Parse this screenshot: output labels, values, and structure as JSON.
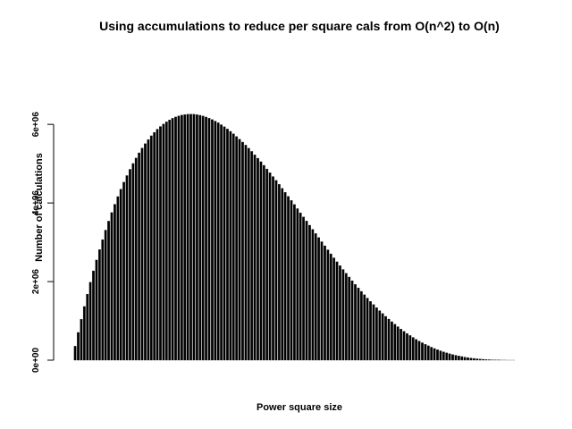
{
  "chart_data": {
    "type": "bar",
    "title": "Using accumulations to reduce per square cals from O(n^2) to O(n)",
    "xlabel": "Power square size",
    "ylabel": "Number of calculations",
    "ylim": [
      0,
      7800000
    ],
    "x_range": [
      1,
      300
    ],
    "y_ticks": [
      0,
      2000000,
      4000000,
      6000000
    ],
    "y_tick_labels": [
      "0e+00",
      "2e+06",
      "4e+06",
      "6e+06"
    ],
    "x_ticks_shown": false,
    "grid": false,
    "legend": "none",
    "bar_color": "#000000",
    "bar_border_color": "#1a1a1a",
    "series": [
      {
        "values": [
          0,
          356000,
          706000,
          1041000,
          1366000,
          1680000,
          1983000,
          2273000,
          2549000,
          2815000,
          3067000,
          3309000,
          3538000,
          3758000,
          3967000,
          4163000,
          4352000,
          4530000,
          4697000,
          4856000,
          5005000,
          5145000,
          5276000,
          5398000,
          5510000,
          5614000,
          5710000,
          5797000,
          5877000,
          5946000,
          6009000,
          6065000,
          6113000,
          6155000,
          6188000,
          6216000,
          6235000,
          6249000,
          6257000,
          6259000,
          6257000,
          6247000,
          6232000,
          6212000,
          6187000,
          6158000,
          6121000,
          6083000,
          6040000,
          5992000,
          5939000,
          5882000,
          5822000,
          5760000,
          5693000,
          5622000,
          5549000,
          5472000,
          5393000,
          5312000,
          5227000,
          5139000,
          5050000,
          4958000,
          4865000,
          4769000,
          4672000,
          4575000,
          4475000,
          4373000,
          4271000,
          4168000,
          4064000,
          3961000,
          3856000,
          3750000,
          3645000,
          3540000,
          3434000,
          3330000,
          3223000,
          3120000,
          3014000,
          2911000,
          2808000,
          2706000,
          2604000,
          2504000,
          2405000,
          2308000,
          2210000,
          2116000,
          2022000,
          1930000,
          1840000,
          1751000,
          1665000,
          1580000,
          1496000,
          1416000,
          1338000,
          1260000,
          1188000,
          1115000,
          1046000,
          979000,
          915000,
          852000,
          793000,
          735000,
          680000,
          628000,
          579000,
          531000,
          486000,
          444000,
          403000,
          367000,
          331000,
          298000,
          267000,
          238000,
          212000,
          187000,
          164000,
          144000,
          125000,
          107000,
          92000,
          78000,
          66000,
          55000,
          45000,
          36000,
          29000,
          23000,
          18000,
          13000,
          10000,
          7000,
          5000,
          3000,
          2000,
          1000,
          500,
          200,
          100,
          0,
          0,
          0
        ]
      }
    ]
  }
}
